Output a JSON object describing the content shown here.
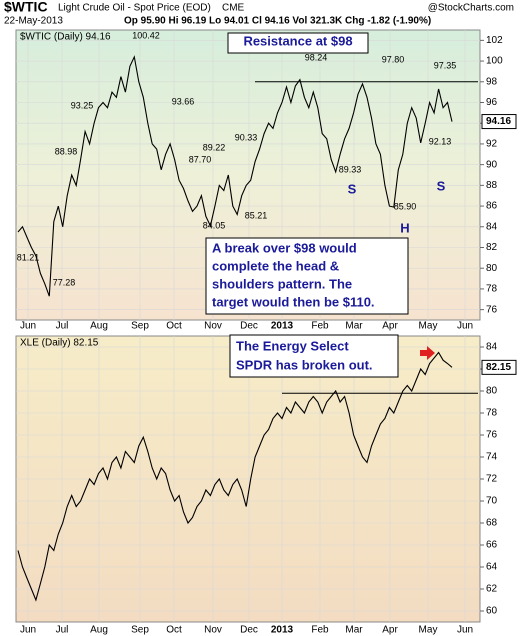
{
  "header": {
    "symbol": "$WTIC",
    "name": "Light Crude Oil - Spot Price (EOD)",
    "exchange": "CME",
    "date": "22-May-2013",
    "quote": "Op 95.90  Hi 96.19  Lo 94.01  Cl 94.16  Vol 321.3K  Chg -1.82 (-1.90%)",
    "source": "@StockCharts.com"
  },
  "chart_data": [
    {
      "type": "line",
      "legend": "$WTIC (Daily) 94.16",
      "color": "#000000",
      "months": [
        "Jun",
        "Jul",
        "Aug",
        "Sep",
        "Oct",
        "Nov",
        "Dec",
        "2013",
        "Feb",
        "Mar",
        "Apr",
        "May",
        "Jun"
      ],
      "values": [
        83.5,
        84,
        83,
        82,
        81.2,
        79.5,
        78.5,
        77.3,
        84.5,
        86,
        84,
        87,
        89,
        88,
        90.5,
        93.2,
        92,
        94,
        95.5,
        96,
        95.5,
        97,
        96.5,
        98.5,
        97,
        99.5,
        100.4,
        98,
        96.5,
        94,
        92,
        91.5,
        89.5,
        91,
        92,
        90.5,
        88.5,
        87.7,
        86.5,
        85.5,
        86,
        87,
        85,
        84.1,
        86,
        88,
        87.5,
        89,
        86,
        85.2,
        87,
        88,
        88.5,
        90.3,
        91.5,
        93,
        94,
        93.5,
        95,
        96,
        97.5,
        96,
        97.6,
        98.2,
        96.5,
        95.5,
        97,
        95.5,
        93,
        92.5,
        90.5,
        89.3,
        91,
        92.5,
        93.5,
        95,
        96.8,
        97.8,
        96.5,
        94.5,
        92,
        91,
        88,
        86,
        85.9,
        89.5,
        91,
        94,
        95.5,
        94.5,
        92.1,
        94,
        96,
        95,
        97.3,
        95.5,
        96,
        94.16
      ],
      "last": 94.16,
      "level": 98,
      "ylim": [
        75,
        103
      ],
      "yticks": [
        76,
        78,
        80,
        82,
        84,
        86,
        88,
        90,
        92,
        94,
        96,
        98,
        100,
        102
      ],
      "price_labels": [
        "81.21",
        "77.28",
        "88.98",
        "93.25",
        "100.42",
        "93.66",
        "87.70",
        "89.22",
        "84.05",
        "90.33",
        "85.21",
        "98.24",
        "89.33",
        "97.80",
        "85.90",
        "92.13",
        "97.35"
      ],
      "pattern_labels": [
        "S",
        "S",
        "H"
      ],
      "annotations": [
        "Resistance at $98",
        "A break over $98 would",
        "complete the head &",
        "shoulders pattern.  The",
        "target would then be $110."
      ]
    },
    {
      "type": "line",
      "legend": "XLE (Daily) 82.15",
      "color": "#000000",
      "months": [
        "Jun",
        "Jul",
        "Aug",
        "Sep",
        "Oct",
        "Nov",
        "Dec",
        "2013",
        "Feb",
        "Mar",
        "Apr",
        "May",
        "Jun"
      ],
      "values": [
        65.5,
        64,
        63,
        62,
        61,
        62.5,
        64,
        66,
        65.5,
        67,
        68,
        69.5,
        70.5,
        69.5,
        70,
        71,
        72,
        71.5,
        72.5,
        73,
        72,
        73.5,
        74,
        73,
        74.5,
        74,
        73.5,
        75,
        75.8,
        74.5,
        73,
        72,
        73,
        72.5,
        71,
        70,
        70.5,
        69,
        68,
        68.5,
        69.5,
        70,
        71,
        70.5,
        71.5,
        72,
        71,
        70.5,
        71.5,
        72,
        71,
        69.5,
        72,
        74,
        75,
        76,
        76.5,
        77.5,
        78,
        77.5,
        78.5,
        78,
        79,
        78.5,
        78,
        79,
        79.5,
        79,
        78,
        79,
        79.5,
        80,
        79,
        79.5,
        78,
        76,
        75,
        74,
        73.5,
        75,
        76,
        77,
        77.5,
        78.5,
        78,
        79,
        80,
        80.5,
        80,
        81,
        82,
        81.5,
        82.5,
        83,
        83.5,
        82.8,
        82.5,
        82.15
      ],
      "last": 82.15,
      "level": 79.8,
      "ylim": [
        59,
        85
      ],
      "yticks": [
        60,
        62,
        64,
        66,
        68,
        70,
        72,
        74,
        76,
        78,
        80,
        82,
        84
      ],
      "annotations": [
        "The Energy Select",
        "SPDR has broken out."
      ]
    }
  ]
}
